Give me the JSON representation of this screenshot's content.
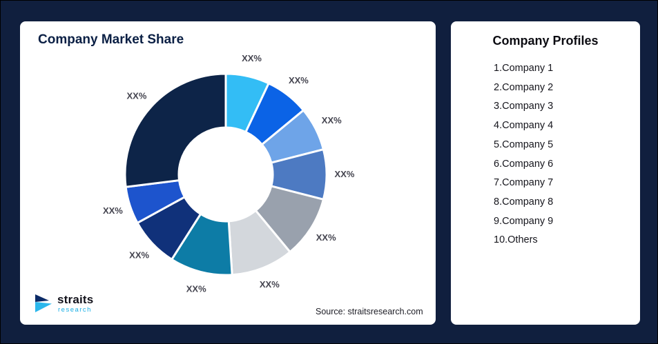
{
  "left_card": {
    "title": "Company Market Share",
    "source": "Source: straitsresearch.com",
    "logo_name": "straits",
    "logo_sub": "research"
  },
  "right_card": {
    "title": "Company Profiles",
    "items": [
      "1.Company 1",
      "2.Company 2",
      "3.Company 3",
      "4.Company 4",
      "5.Company 5",
      "6.Company 6",
      "7.Company 7",
      "8.Company 8",
      "9.Company 9",
      "10.Others"
    ]
  },
  "chart_data": {
    "type": "pie",
    "subtype": "donut",
    "title": "Company Market Share",
    "categories": [
      "Company 1",
      "Company 2",
      "Company 3",
      "Company 4",
      "Company 5",
      "Company 6",
      "Company 7",
      "Company 8",
      "Company 9",
      "Others"
    ],
    "values": [
      7,
      7,
      7,
      8,
      10,
      10,
      10,
      8,
      6,
      27
    ],
    "value_labels": [
      "XX%",
      "XX%",
      "XX%",
      "XX%",
      "XX%",
      "XX%",
      "XX%",
      "XX%",
      "XX%",
      "XX%"
    ],
    "colors": [
      "#33bdf5",
      "#0b63e6",
      "#6ea4e8",
      "#4d7ac2",
      "#99a1ad",
      "#d3d7dc",
      "#0d7ca6",
      "#10317a",
      "#1d54cd",
      "#0d2448"
    ],
    "start_angle_deg": 0,
    "direction": "clockwise",
    "legend": "none",
    "labels_shown_as_placeholders": true
  }
}
